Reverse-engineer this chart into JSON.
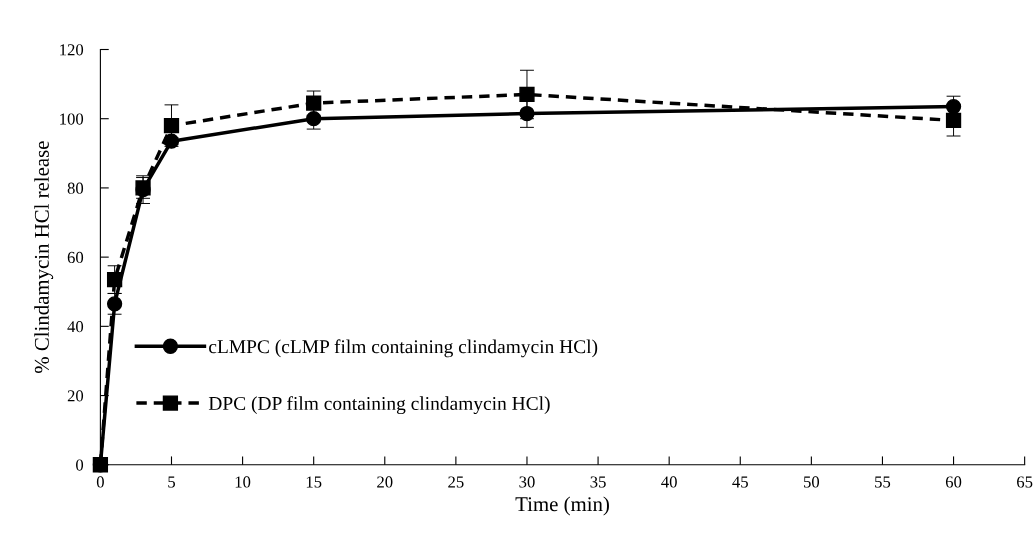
{
  "chart_data": {
    "type": "line",
    "xlabel": "Time (min)",
    "ylabel": "% Clindamycin HCl release",
    "xlim": [
      0,
      65
    ],
    "xticks": [
      0,
      5,
      10,
      15,
      20,
      25,
      30,
      35,
      40,
      45,
      50,
      55,
      60,
      65
    ],
    "ylim": [
      0,
      120
    ],
    "yticks": [
      0,
      20,
      40,
      60,
      80,
      100,
      120
    ],
    "grid": false,
    "legend": "left",
    "series": [
      {
        "name": "cLMPC (cLMP film containing clindamycin HCl)",
        "color": "#000000",
        "marker": "circle",
        "line_style": "solid",
        "x": [
          0,
          1,
          3,
          5,
          15,
          30,
          60
        ],
        "values": [
          0,
          46.5,
          79.5,
          93.5,
          100,
          101.5,
          103.5
        ],
        "errors": [
          null,
          3,
          4,
          1,
          3,
          4,
          3
        ]
      },
      {
        "name": "DPC (DP film containing clindamycin HCl)",
        "color": "#000000",
        "marker": "square",
        "line_style": "dashed",
        "x": [
          0,
          1,
          3,
          5,
          15,
          30,
          60
        ],
        "values": [
          0,
          53.5,
          80,
          98,
          104.5,
          107,
          99.5
        ],
        "errors": [
          null,
          4,
          3,
          6,
          3.5,
          7,
          4.5
        ]
      }
    ]
  }
}
